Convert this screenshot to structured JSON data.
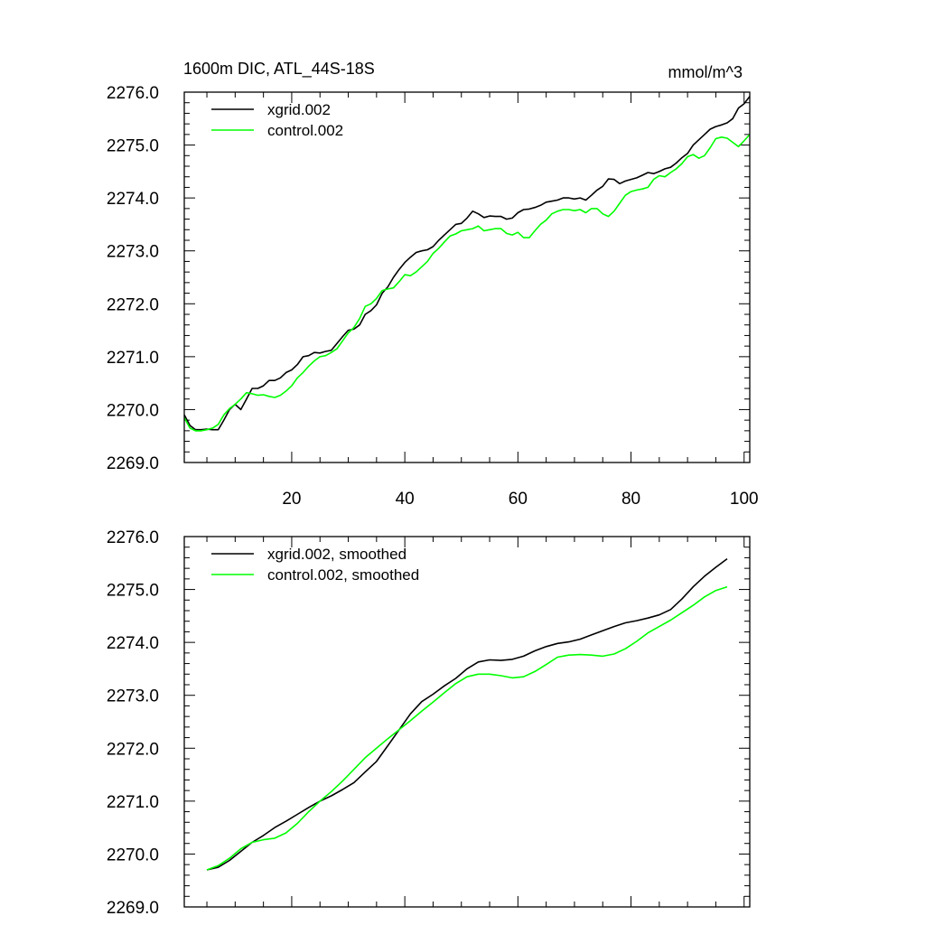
{
  "chart_data": [
    {
      "type": "line",
      "title": "1600m DIC, ATL_44S-18S",
      "units": "mmol/m^3",
      "xlim": [
        1,
        101
      ],
      "ylim": [
        2269.0,
        2276.0
      ],
      "yticks": [
        "2269.0",
        "2270.0",
        "2271.0",
        "2272.0",
        "2273.0",
        "2274.0",
        "2275.0",
        "2276.0"
      ],
      "xticks": [
        "20",
        "40",
        "60",
        "80",
        "100"
      ],
      "legend_position": "top-left",
      "series": [
        {
          "name": "xgrid.002",
          "color": "#000000",
          "x": [
            1,
            2,
            3,
            4,
            5,
            6,
            7,
            8,
            9,
            10,
            11,
            12,
            13,
            14,
            15,
            16,
            17,
            18,
            19,
            20,
            21,
            22,
            23,
            24,
            25,
            26,
            27,
            28,
            29,
            30,
            31,
            32,
            33,
            34,
            35,
            36,
            37,
            38,
            39,
            40,
            41,
            42,
            43,
            44,
            45,
            46,
            47,
            48,
            49,
            50,
            51,
            52,
            53,
            54,
            55,
            56,
            57,
            58,
            59,
            60,
            61,
            62,
            63,
            64,
            65,
            66,
            67,
            68,
            69,
            70,
            71,
            72,
            73,
            74,
            75,
            76,
            77,
            78,
            79,
            80,
            81,
            82,
            83,
            84,
            85,
            86,
            87,
            88,
            89,
            90,
            91,
            92,
            93,
            94,
            95,
            96,
            97,
            98,
            99,
            100,
            101
          ],
          "values": [
            2269.9,
            2269.7,
            2269.62,
            2269.62,
            2269.63,
            2269.62,
            2269.62,
            2269.8,
            2270.0,
            2270.1,
            2270.0,
            2270.2,
            2270.4,
            2270.4,
            2270.45,
            2270.55,
            2270.55,
            2270.6,
            2270.7,
            2270.75,
            2270.85,
            2271.0,
            2271.02,
            2271.08,
            2271.07,
            2271.1,
            2271.12,
            2271.25,
            2271.38,
            2271.5,
            2271.52,
            2271.6,
            2271.8,
            2271.87,
            2271.98,
            2272.2,
            2272.32,
            2272.5,
            2272.65,
            2272.78,
            2272.88,
            2272.97,
            2273.0,
            2273.02,
            2273.08,
            2273.2,
            2273.3,
            2273.4,
            2273.5,
            2273.52,
            2273.62,
            2273.75,
            2273.7,
            2273.63,
            2273.66,
            2273.65,
            2273.65,
            2273.6,
            2273.62,
            2273.72,
            2273.78,
            2273.79,
            2273.82,
            2273.86,
            2273.92,
            2273.94,
            2273.96,
            2274.0,
            2274.0,
            2273.98,
            2274.0,
            2273.96,
            2274.05,
            2274.15,
            2274.22,
            2274.36,
            2274.35,
            2274.27,
            2274.32,
            2274.35,
            2274.38,
            2274.43,
            2274.48,
            2274.46,
            2274.5,
            2274.55,
            2274.58,
            2274.66,
            2274.76,
            2274.84,
            2275.0,
            2275.1,
            2275.2,
            2275.3,
            2275.35,
            2275.38,
            2275.42,
            2275.5,
            2275.7,
            2275.78,
            2275.92
          ]
        },
        {
          "name": "control.002",
          "color": "#00ff00",
          "x": [
            1,
            2,
            3,
            4,
            5,
            6,
            7,
            8,
            9,
            10,
            11,
            12,
            13,
            14,
            15,
            16,
            17,
            18,
            19,
            20,
            21,
            22,
            23,
            24,
            25,
            26,
            27,
            28,
            29,
            30,
            31,
            32,
            33,
            34,
            35,
            36,
            37,
            38,
            39,
            40,
            41,
            42,
            43,
            44,
            45,
            46,
            47,
            48,
            49,
            50,
            51,
            52,
            53,
            54,
            55,
            56,
            57,
            58,
            59,
            60,
            61,
            62,
            63,
            64,
            65,
            66,
            67,
            68,
            69,
            70,
            71,
            72,
            73,
            74,
            75,
            76,
            77,
            78,
            79,
            80,
            81,
            82,
            83,
            84,
            85,
            86,
            87,
            88,
            89,
            90,
            91,
            92,
            93,
            94,
            95,
            96,
            97,
            98,
            99,
            100,
            101
          ],
          "values": [
            2269.85,
            2269.65,
            2269.6,
            2269.6,
            2269.62,
            2269.65,
            2269.72,
            2269.9,
            2270.02,
            2270.1,
            2270.2,
            2270.32,
            2270.3,
            2270.27,
            2270.28,
            2270.25,
            2270.23,
            2270.27,
            2270.35,
            2270.45,
            2270.6,
            2270.7,
            2270.82,
            2270.92,
            2271.0,
            2271.02,
            2271.08,
            2271.15,
            2271.3,
            2271.45,
            2271.55,
            2271.72,
            2271.95,
            2272.0,
            2272.1,
            2272.25,
            2272.28,
            2272.3,
            2272.42,
            2272.55,
            2272.53,
            2272.6,
            2272.7,
            2272.8,
            2272.95,
            2273.05,
            2273.17,
            2273.28,
            2273.32,
            2273.38,
            2273.4,
            2273.42,
            2273.47,
            2273.38,
            2273.4,
            2273.42,
            2273.42,
            2273.33,
            2273.3,
            2273.35,
            2273.25,
            2273.25,
            2273.38,
            2273.5,
            2273.58,
            2273.7,
            2273.75,
            2273.78,
            2273.78,
            2273.76,
            2273.78,
            2273.72,
            2273.8,
            2273.8,
            2273.7,
            2273.65,
            2273.75,
            2273.9,
            2274.05,
            2274.12,
            2274.15,
            2274.17,
            2274.2,
            2274.35,
            2274.42,
            2274.4,
            2274.48,
            2274.55,
            2274.65,
            2274.78,
            2274.82,
            2274.75,
            2274.8,
            2274.95,
            2275.12,
            2275.15,
            2275.13,
            2275.05,
            2274.97,
            2275.08,
            2275.2
          ]
        }
      ]
    },
    {
      "type": "line",
      "title": "",
      "ylim": [
        2269.0,
        2276.0
      ],
      "xlim": [
        1,
        101
      ],
      "yticks": [
        "2269.0",
        "2270.0",
        "2271.0",
        "2272.0",
        "2273.0",
        "2274.0",
        "2275.0",
        "2276.0"
      ],
      "legend_position": "top-left",
      "series": [
        {
          "name": "xgrid.002, smoothed",
          "color": "#000000",
          "x": [
            5,
            7,
            9,
            11,
            13,
            15,
            17,
            19,
            21,
            23,
            25,
            27,
            29,
            31,
            33,
            35,
            37,
            39,
            41,
            43,
            45,
            47,
            49,
            51,
            53,
            55,
            57,
            59,
            61,
            63,
            65,
            67,
            69,
            71,
            73,
            75,
            77,
            79,
            81,
            83,
            85,
            87,
            89,
            91,
            93,
            95,
            97
          ],
          "values": [
            2269.7,
            2269.75,
            2269.88,
            2270.05,
            2270.22,
            2270.35,
            2270.5,
            2270.62,
            2270.75,
            2270.88,
            2271.0,
            2271.1,
            2271.22,
            2271.35,
            2271.55,
            2271.75,
            2272.05,
            2272.35,
            2272.65,
            2272.88,
            2273.02,
            2273.18,
            2273.32,
            2273.5,
            2273.63,
            2273.67,
            2273.66,
            2273.68,
            2273.74,
            2273.84,
            2273.92,
            2273.98,
            2274.01,
            2274.06,
            2274.14,
            2274.22,
            2274.3,
            2274.37,
            2274.41,
            2274.46,
            2274.52,
            2274.62,
            2274.82,
            2275.05,
            2275.25,
            2275.42,
            2275.58
          ]
        },
        {
          "name": "control.002, smoothed",
          "color": "#00ff00",
          "x": [
            5,
            7,
            9,
            11,
            13,
            15,
            17,
            19,
            21,
            23,
            25,
            27,
            29,
            31,
            33,
            35,
            37,
            39,
            41,
            43,
            45,
            47,
            49,
            51,
            53,
            55,
            57,
            59,
            61,
            63,
            65,
            67,
            69,
            71,
            73,
            75,
            77,
            79,
            81,
            83,
            85,
            87,
            89,
            91,
            93,
            95,
            97
          ],
          "values": [
            2269.7,
            2269.78,
            2269.92,
            2270.1,
            2270.22,
            2270.27,
            2270.3,
            2270.4,
            2270.58,
            2270.8,
            2271.0,
            2271.18,
            2271.38,
            2271.6,
            2271.82,
            2272.0,
            2272.18,
            2272.35,
            2272.52,
            2272.7,
            2272.87,
            2273.05,
            2273.22,
            2273.35,
            2273.4,
            2273.4,
            2273.37,
            2273.33,
            2273.35,
            2273.45,
            2273.58,
            2273.72,
            2273.76,
            2273.77,
            2273.76,
            2273.74,
            2273.78,
            2273.88,
            2274.02,
            2274.18,
            2274.3,
            2274.42,
            2274.56,
            2274.7,
            2274.86,
            2274.98,
            2275.05
          ]
        }
      ]
    }
  ]
}
